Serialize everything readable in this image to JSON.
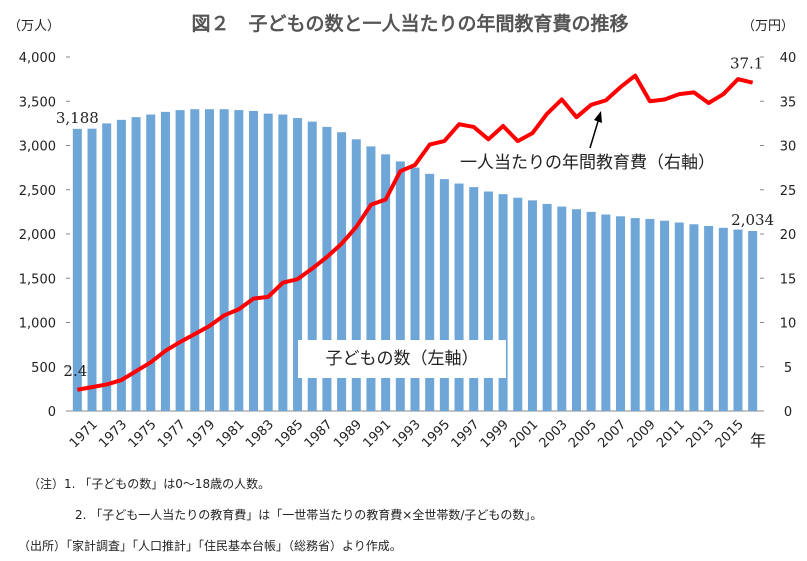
{
  "chart_data": {
    "type": "bar-line",
    "title": "図２　子どもの数と一人当たりの年間教育費の推移",
    "y_label": "（万人）",
    "y2_label": "（万円）",
    "x_label": "年",
    "categories": [
      null,
      "1971",
      null,
      "1973",
      null,
      "1975",
      null,
      "1977",
      null,
      "1979",
      null,
      "1981",
      null,
      "1983",
      null,
      "1985",
      null,
      "1987",
      null,
      "1989",
      null,
      "1991",
      null,
      "1993",
      null,
      "1995",
      null,
      "1997",
      null,
      "1999",
      null,
      "2001",
      null,
      "2003",
      null,
      "2005",
      null,
      "2007",
      null,
      "2009",
      null,
      "2011",
      null,
      "2013",
      null,
      "2015",
      null
    ],
    "series": [
      {
        "name": "子どもの数（左軸）",
        "type": "bar",
        "color": "#6ea6d8",
        "values": [
          3188,
          3190,
          3250,
          3290,
          3320,
          3350,
          3380,
          3400,
          3410,
          3410,
          3410,
          3400,
          3390,
          3360,
          3350,
          3310,
          3270,
          3210,
          3150,
          3070,
          2990,
          2900,
          2820,
          2750,
          2680,
          2620,
          2570,
          2530,
          2480,
          2450,
          2410,
          2380,
          2340,
          2310,
          2280,
          2250,
          2220,
          2200,
          2180,
          2170,
          2150,
          2130,
          2110,
          2090,
          2070,
          2050,
          2034
        ],
        "value_labels": [
          "3,188",
          null,
          null,
          null,
          null,
          null,
          null,
          null,
          null,
          null,
          null,
          null,
          null,
          null,
          null,
          null,
          null,
          null,
          null,
          null,
          null,
          null,
          null,
          null,
          null,
          null,
          null,
          null,
          null,
          null,
          null,
          null,
          null,
          null,
          null,
          null,
          null,
          null,
          null,
          null,
          null,
          null,
          null,
          null,
          null,
          null,
          "2,034"
        ]
      },
      {
        "name": "一人当たりの年間教育費（右軸）",
        "type": "line",
        "axis": "y2",
        "color": "#ff0000",
        "values": [
          2.4,
          2.7,
          3.0,
          3.5,
          4.5,
          5.5,
          6.8,
          7.8,
          8.7,
          9.6,
          10.8,
          11.5,
          12.7,
          12.9,
          14.5,
          14.9,
          16.1,
          17.4,
          18.9,
          20.8,
          23.3,
          23.9,
          27.1,
          27.8,
          30.1,
          30.5,
          32.4,
          32.1,
          30.7,
          32.2,
          30.5,
          31.4,
          33.6,
          35.2,
          33.2,
          34.6,
          35.1,
          36.6,
          37.9,
          35.0,
          35.2,
          35.8,
          36.0,
          34.8,
          35.8,
          37.5,
          37.1
        ],
        "value_labels": [
          "2.4",
          null,
          null,
          null,
          null,
          null,
          null,
          null,
          null,
          null,
          null,
          null,
          null,
          null,
          null,
          null,
          null,
          null,
          null,
          null,
          null,
          null,
          null,
          null,
          null,
          null,
          null,
          null,
          null,
          null,
          null,
          null,
          null,
          null,
          null,
          null,
          null,
          null,
          null,
          null,
          null,
          null,
          null,
          null,
          null,
          null,
          "37.1"
        ]
      }
    ],
    "ylim": [
      0,
      4000
    ],
    "yticks": [
      0,
      500,
      {
        "value": 1000,
        "label": "1,000"
      },
      {
        "value": 1500,
        "label": "1,500"
      },
      {
        "value": 2000,
        "label": "2,000"
      },
      {
        "value": 2500,
        "label": "2,500"
      },
      {
        "value": 3000,
        "label": "3,000"
      },
      {
        "value": 3500,
        "label": "3,500"
      },
      {
        "value": 4000,
        "label": "4,000"
      }
    ],
    "y2lim": [
      0,
      40
    ],
    "y2ticks": [
      0,
      5,
      10,
      15,
      20,
      25,
      30,
      35,
      40
    ],
    "notes": [
      "（注）1. 「子どもの数」は0～18歳の人数。",
      "2. 「子ども一人当たりの教育費」は「一世帯当たりの教育費×全世帯数/子どもの数」。",
      "（出所）「家計調査」「人口推計」「住民基本台帳」（総務省）より作成。"
    ]
  }
}
